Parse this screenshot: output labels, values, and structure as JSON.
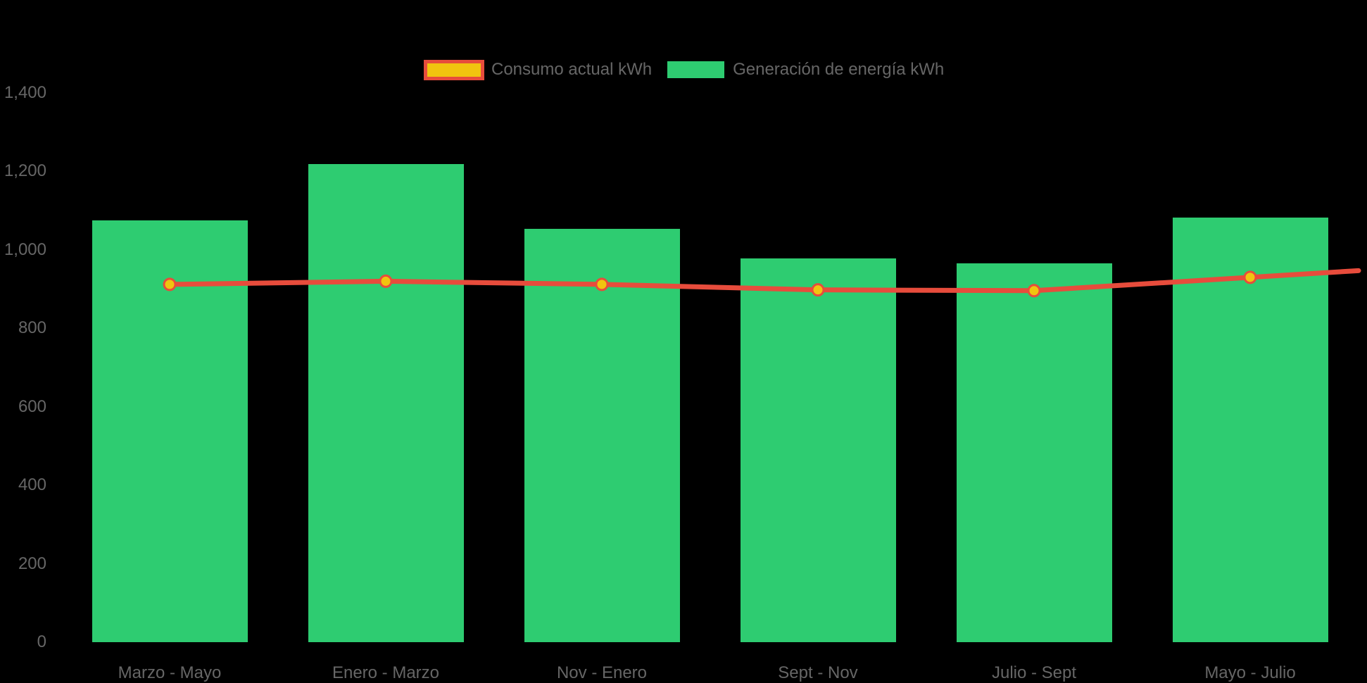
{
  "chart_data": {
    "type": "combo",
    "title": "",
    "xlabel": "",
    "ylabel": "",
    "categories": [
      "Marzo - Mayo",
      "Enero - Marzo",
      "Nov - Enero",
      "Sept - Nov",
      "Julio - Sept",
      "Mayo - Julio"
    ],
    "series": [
      {
        "name": "Consumo actual kWh",
        "type": "line",
        "color": "#e74c3c",
        "marker_fill": "#f1c40f",
        "values": [
          912,
          920,
          912,
          898,
          896,
          930
        ]
      },
      {
        "name": "Generación de energía kWh",
        "type": "bar",
        "color": "#2ecc71",
        "values": [
          1075,
          1218,
          1054,
          978,
          966,
          1082
        ]
      }
    ],
    "ylim": [
      0,
      1400
    ],
    "yticks": [
      {
        "value": 0,
        "label": "0"
      },
      {
        "value": 200,
        "label": "200"
      },
      {
        "value": 400,
        "label": "400"
      },
      {
        "value": 600,
        "label": "600"
      },
      {
        "value": 800,
        "label": "800"
      },
      {
        "value": 1000,
        "label": "1,000"
      },
      {
        "value": 1200,
        "label": "1,200"
      },
      {
        "value": 1400,
        "label": "1,400"
      }
    ],
    "grid": false,
    "legend_position": "top-center",
    "background_color": "#000000",
    "text_color": "#666666"
  }
}
